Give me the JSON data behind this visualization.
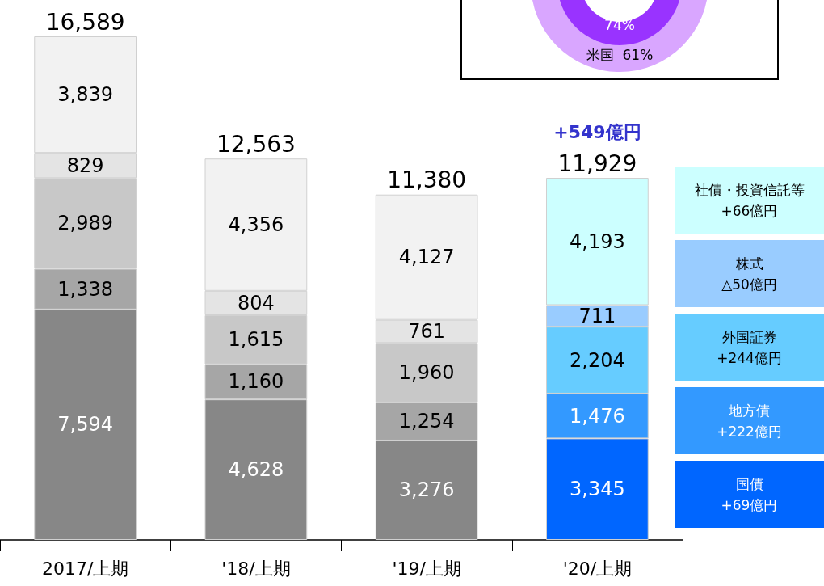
{
  "chart_data": {
    "type": "bar",
    "stacked": true,
    "legend": "right",
    "categories": [
      "2017/上期",
      "'18/上期",
      "'19/上期",
      "'20/上期"
    ],
    "series": [
      {
        "name": "国債",
        "values": [
          7594,
          4628,
          3276,
          3345
        ],
        "value_labels": [
          "7,594",
          "4,628",
          "3,276",
          "3,345"
        ],
        "colors": [
          "#878787",
          "#878787",
          "#878787",
          "#0066ff"
        ]
      },
      {
        "name": "地方債",
        "values": [
          1338,
          1160,
          1254,
          1476
        ],
        "value_labels": [
          "1,338",
          "1,160",
          "1,254",
          "1,476"
        ],
        "colors": [
          "#a6a6a6",
          "#a6a6a6",
          "#a6a6a6",
          "#3399ff"
        ]
      },
      {
        "name": "外国証券",
        "values": [
          2989,
          1615,
          1960,
          2204
        ],
        "value_labels": [
          "2,989",
          "1,615",
          "1,960",
          "2,204"
        ],
        "colors": [
          "#c8c8c8",
          "#c8c8c8",
          "#c8c8c8",
          "#66ccff"
        ]
      },
      {
        "name": "株式",
        "values": [
          829,
          804,
          761,
          711
        ],
        "value_labels": [
          "829",
          "804",
          "761",
          "711"
        ],
        "colors": [
          "#e4e4e4",
          "#e4e4e4",
          "#e4e4e4",
          "#99ccff"
        ]
      },
      {
        "name": "社債・投資信託等",
        "values": [
          3839,
          4356,
          4127,
          4193
        ],
        "value_labels": [
          "3,839",
          "4,356",
          "4,127",
          "4,193"
        ],
        "colors": [
          "#f2f2f2",
          "#f2f2f2",
          "#f2f2f2",
          "#ccffff"
        ]
      }
    ],
    "totals": [
      "16,589",
      "12,563",
      "11,380",
      "11,929"
    ],
    "annotations": [
      "+69億円",
      "+222億円",
      "+244億円",
      "△50億円",
      "+66億円",
      "+549億円",
      "74%",
      "米国  61%"
    ]
  }
}
